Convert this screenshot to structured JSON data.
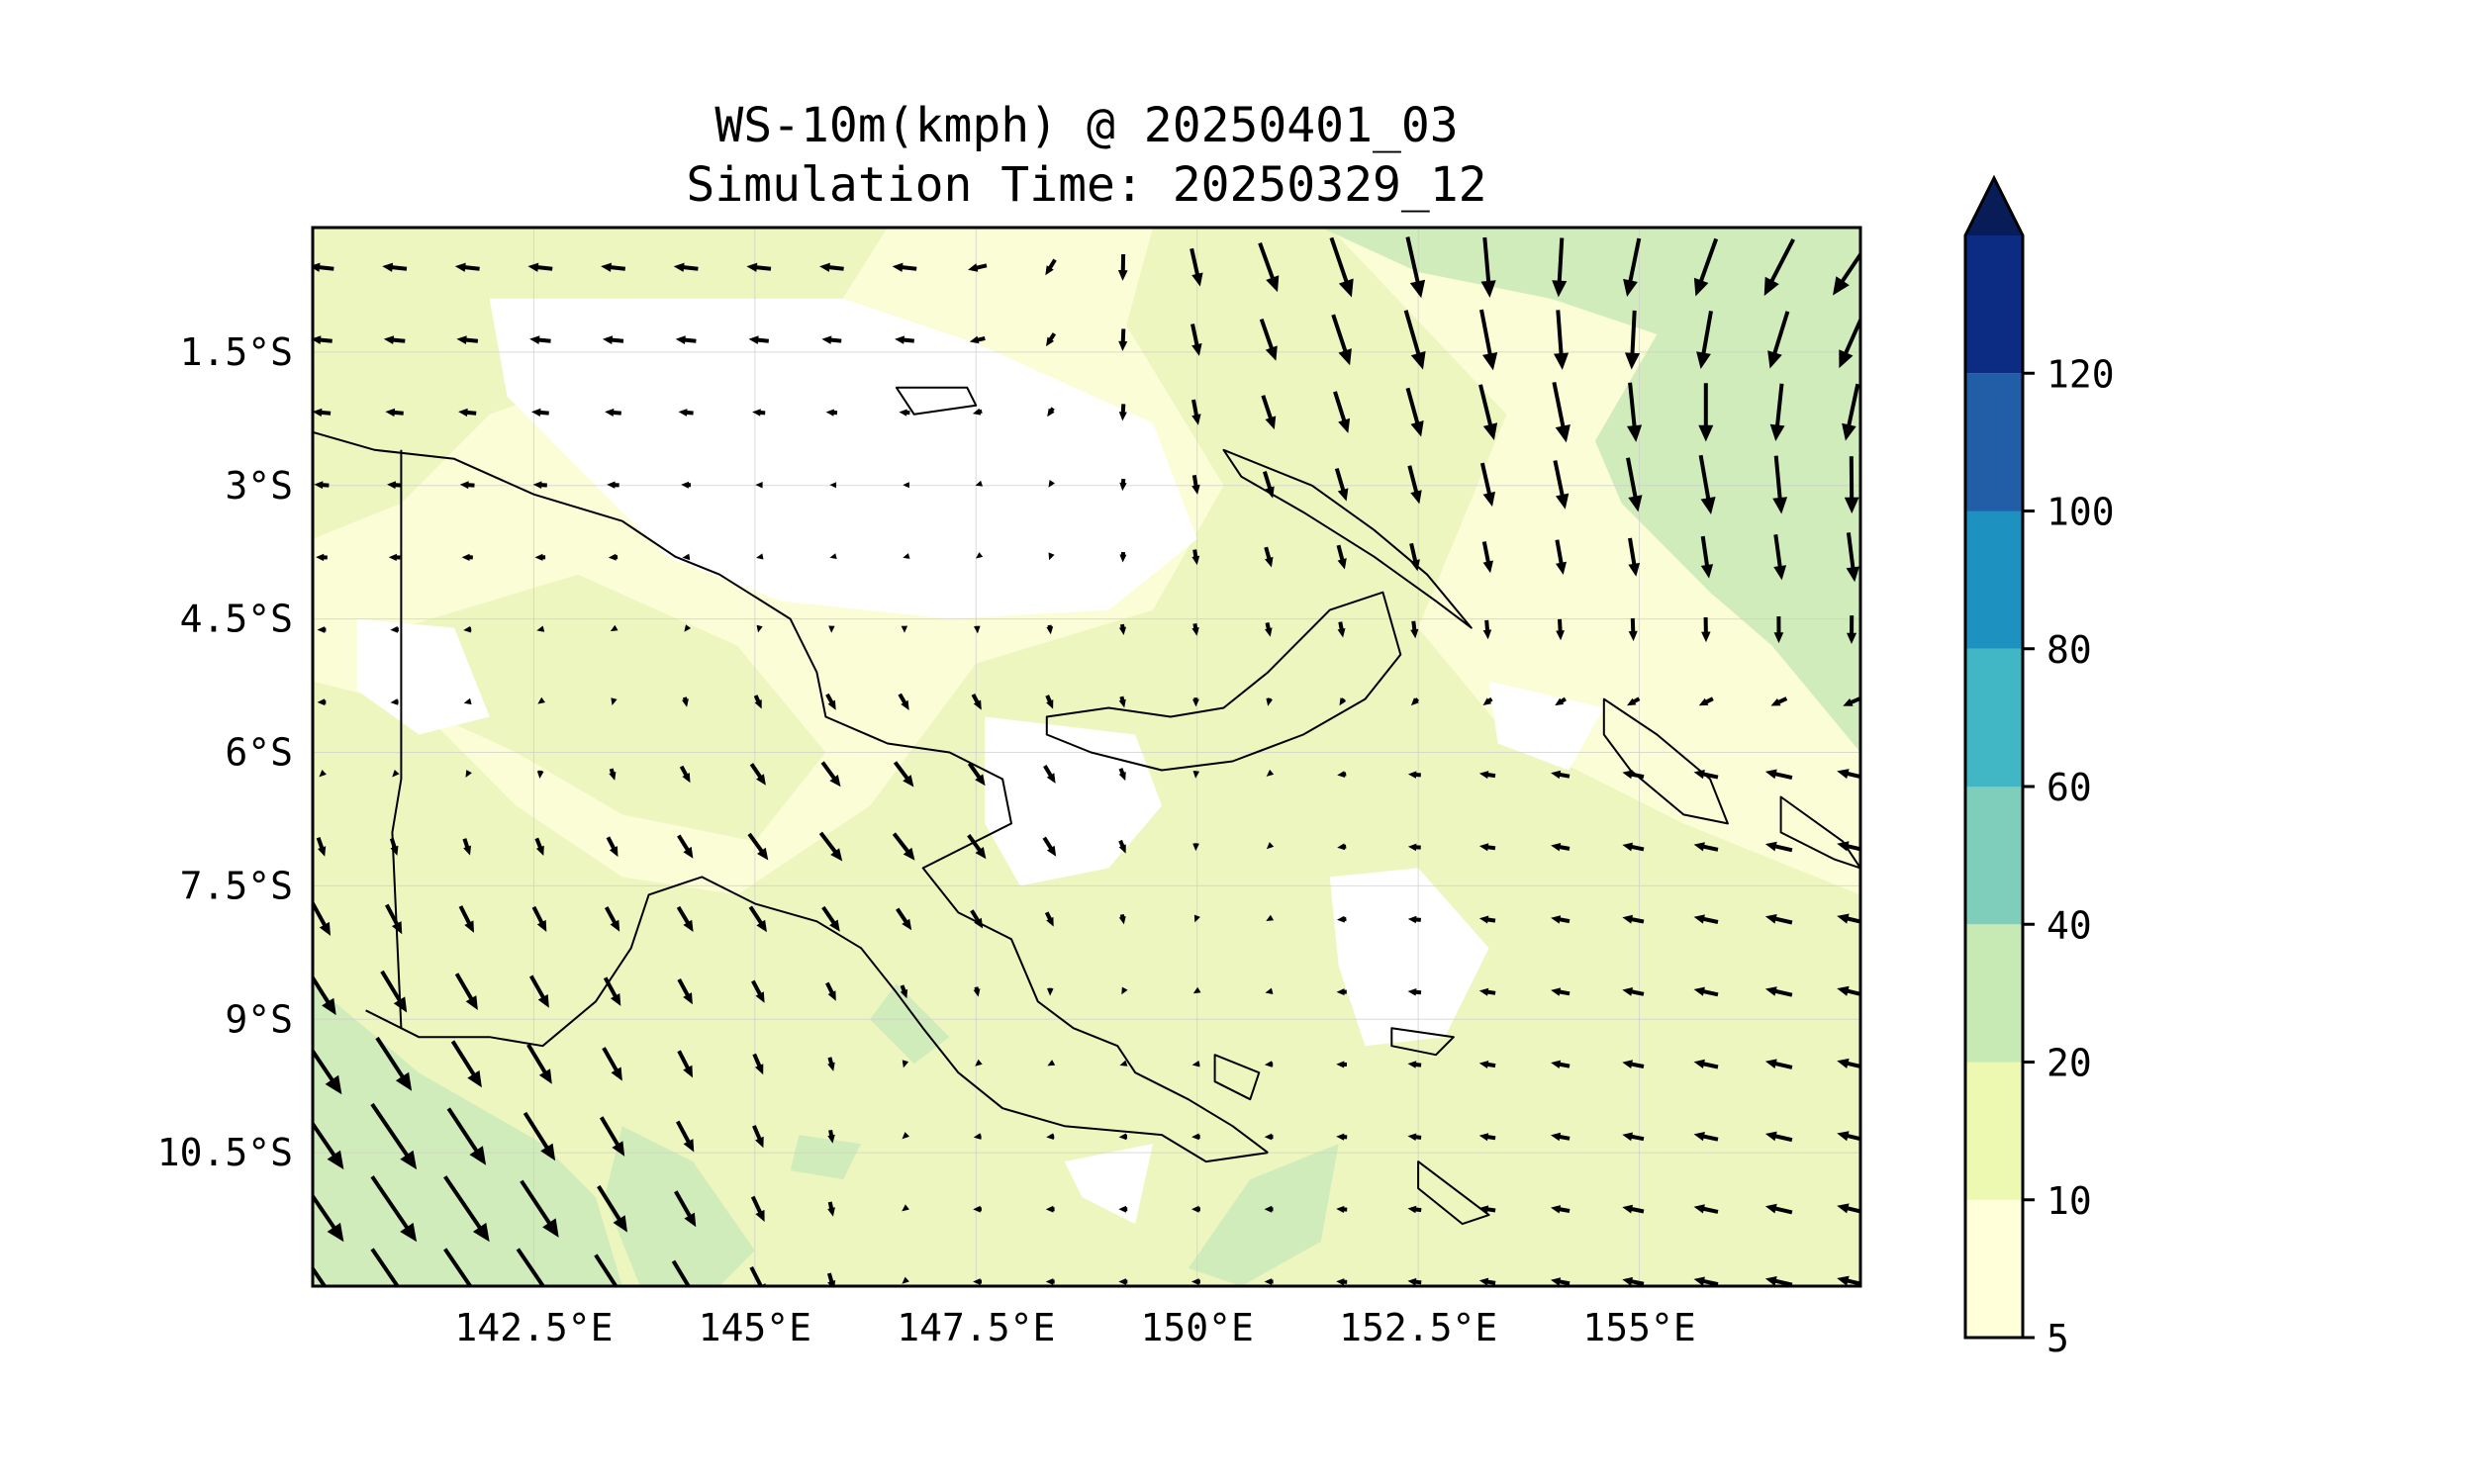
{
  "figure": {
    "title_line1": "WS-10m(kmph) @ 20250401_03",
    "title_line2": "Simulation Time: 20250329_12"
  },
  "map": {
    "lon_range": [
      140.0,
      157.5
    ],
    "lat_range": [
      -12.0,
      -0.1
    ],
    "lon_ticks": [
      {
        "value": 142.5,
        "label": "142.5°E"
      },
      {
        "value": 145.0,
        "label": "145°E"
      },
      {
        "value": 147.5,
        "label": "147.5°E"
      },
      {
        "value": 150.0,
        "label": "150°E"
      },
      {
        "value": 152.5,
        "label": "152.5°E"
      },
      {
        "value": 155.0,
        "label": "155°E"
      }
    ],
    "lat_ticks": [
      {
        "value": -1.5,
        "label": "1.5°S"
      },
      {
        "value": -3.0,
        "label": "3°S"
      },
      {
        "value": -4.5,
        "label": "4.5°S"
      },
      {
        "value": -6.0,
        "label": "6°S"
      },
      {
        "value": -7.5,
        "label": "7.5°S"
      },
      {
        "value": -9.0,
        "label": "9°S"
      },
      {
        "value": -10.5,
        "label": "10.5°S"
      }
    ],
    "gridlines": true,
    "coastlines": true,
    "colors": {
      "land_fill_base": "#fbfdd6",
      "zone_10_20": "#eef6c0",
      "zone_20_40": "#d1ecbb",
      "calm": "#ffffff",
      "vector": "#000000",
      "coastline": "#000000"
    },
    "wind_field_note": "Wind vectors: westward (easterly) flow across north/east, southeastward flow in southwest; strongest over northeast ocean and southwest corner."
  },
  "colorbar": {
    "levels": [
      5,
      10,
      20,
      40,
      60,
      80,
      100,
      120
    ],
    "labels": [
      "5",
      "10",
      "20",
      "40",
      "60",
      "80",
      "100",
      "120"
    ],
    "colors": [
      "#ffffd9",
      "#edf8b1",
      "#c7e9b4",
      "#7fcdbb",
      "#41b6c4",
      "#1d91c0",
      "#225ea8",
      "#0c2c84"
    ],
    "extend": "max",
    "extend_color": "#081d58"
  }
}
